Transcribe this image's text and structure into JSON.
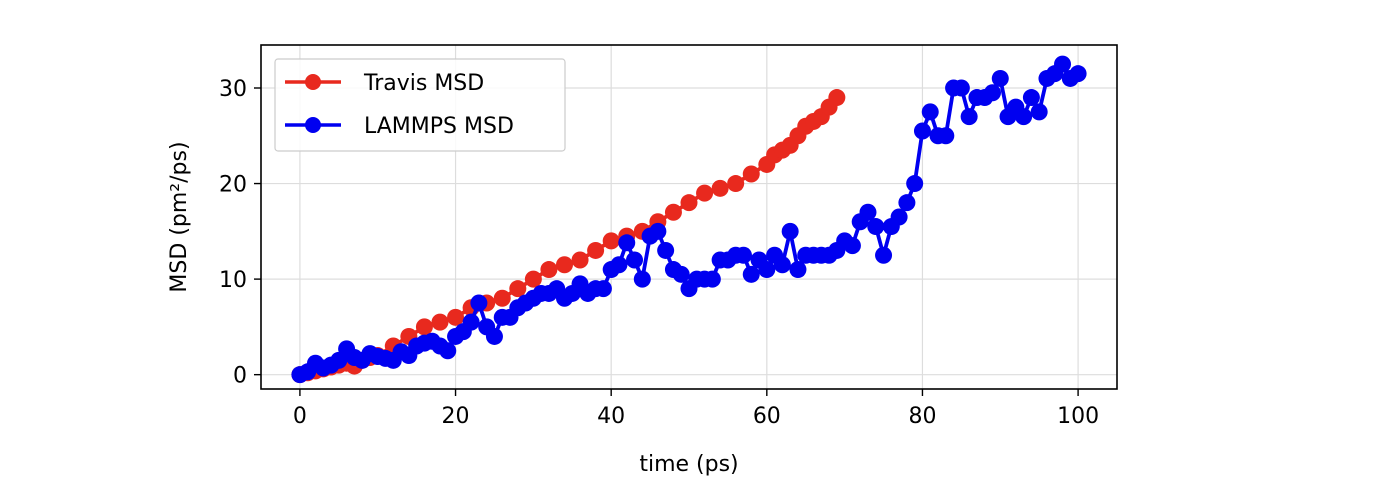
{
  "chart_data": {
    "type": "line",
    "xlabel": "time (ps)",
    "ylabel": "MSD (pm²/ps)",
    "xlim": [
      -5,
      105
    ],
    "ylim": [
      -1.5,
      34.5
    ],
    "xticks": [
      0,
      20,
      40,
      60,
      80,
      100
    ],
    "yticks": [
      0,
      10,
      20,
      30
    ],
    "grid": true,
    "legend_position": "top-left",
    "series": [
      {
        "name": "Travis MSD",
        "color": "#e8291e",
        "marker": "circle",
        "x": [
          0,
          1,
          2,
          3,
          4,
          5,
          6,
          7,
          8,
          9,
          10,
          12,
          14,
          16,
          18,
          20,
          22,
          24,
          26,
          28,
          30,
          32,
          34,
          36,
          38,
          40,
          42,
          44,
          46,
          48,
          50,
          52,
          54,
          56,
          58,
          60,
          61,
          62,
          63,
          64,
          65,
          66,
          67,
          68,
          69
        ],
        "y": [
          0,
          0.2,
          0.4,
          0.6,
          0.8,
          1.0,
          1.2,
          0.9,
          1.5,
          1.8,
          2.0,
          3.0,
          4.0,
          5.0,
          5.5,
          6.0,
          7.0,
          7.5,
          8.0,
          9.0,
          10.0,
          11.0,
          11.5,
          12.0,
          13.0,
          14.0,
          14.5,
          15.0,
          16.0,
          17.0,
          18.0,
          19.0,
          19.5,
          20.0,
          21.0,
          22.0,
          23.0,
          23.5,
          24.0,
          25.0,
          26.0,
          26.5,
          27.0,
          28.0,
          29.0
        ]
      },
      {
        "name": "LAMMPS MSD",
        "color": "#0000f0",
        "marker": "circle",
        "x": [
          0,
          1,
          2,
          3,
          4,
          5,
          6,
          7,
          8,
          9,
          10,
          11,
          12,
          13,
          14,
          15,
          16,
          17,
          18,
          19,
          20,
          21,
          22,
          23,
          24,
          25,
          26,
          27,
          28,
          29,
          30,
          31,
          32,
          33,
          34,
          35,
          36,
          37,
          38,
          39,
          40,
          41,
          42,
          43,
          44,
          45,
          46,
          47,
          48,
          49,
          50,
          51,
          52,
          53,
          54,
          55,
          56,
          57,
          58,
          59,
          60,
          61,
          62,
          63,
          64,
          65,
          66,
          67,
          68,
          69,
          70,
          71,
          72,
          73,
          74,
          75,
          76,
          77,
          78,
          79,
          80,
          81,
          82,
          83,
          84,
          85,
          86,
          87,
          88,
          89,
          90,
          91,
          92,
          93,
          94,
          95,
          96,
          97,
          98,
          99,
          100
        ],
        "y": [
          0,
          0.3,
          1.2,
          0.7,
          1.0,
          1.5,
          2.7,
          1.8,
          1.5,
          2.2,
          1.9,
          1.7,
          1.5,
          2.4,
          2.0,
          3.0,
          3.3,
          3.5,
          3.0,
          2.5,
          4.0,
          4.5,
          5.5,
          7.5,
          5.0,
          4.0,
          6.0,
          6.0,
          7.0,
          7.5,
          8.0,
          8.5,
          8.5,
          9.0,
          8.0,
          8.5,
          9.5,
          8.5,
          9.0,
          9.0,
          11.0,
          11.5,
          13.8,
          12.0,
          10.0,
          14.5,
          15.0,
          13.0,
          11.0,
          10.5,
          9.0,
          10.0,
          10.0,
          10.0,
          12.0,
          12.0,
          12.5,
          12.5,
          10.5,
          12.0,
          11.0,
          12.5,
          11.5,
          15.0,
          11.0,
          12.5,
          12.5,
          12.5,
          12.5,
          13.0,
          14.0,
          13.5,
          16.0,
          17.0,
          15.5,
          12.5,
          15.5,
          16.5,
          18.0,
          20.0,
          25.5,
          27.5,
          25.0,
          25.0,
          30.0,
          30.0,
          27.0,
          29.0,
          29.0,
          29.5,
          31.0,
          27.0,
          28.0,
          27.0,
          29.0,
          27.5,
          31.0,
          31.5,
          32.5,
          31.0,
          31.5
        ]
      }
    ]
  }
}
